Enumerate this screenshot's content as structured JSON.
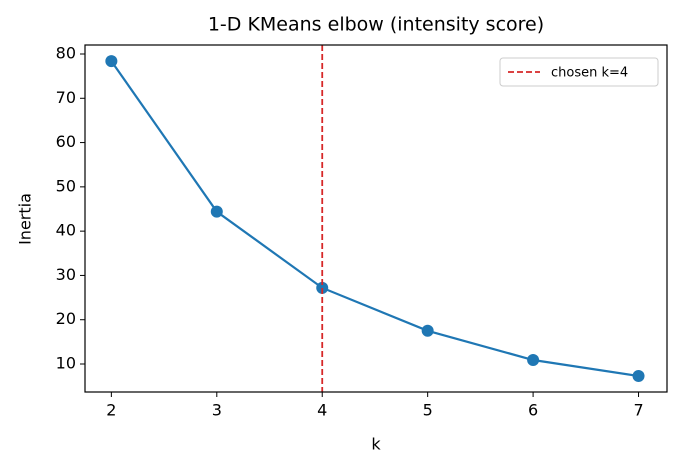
{
  "chart_data": {
    "type": "line",
    "title": "1-D KMeans elbow (intensity score)",
    "x_label": "k",
    "y_label": "Inertia",
    "x": [
      2,
      3,
      4,
      5,
      6,
      7
    ],
    "series": [
      {
        "name": null,
        "color": "#1f77b4",
        "values": [
          78.4,
          44.4,
          27.2,
          17.5,
          10.9,
          7.3
        ]
      }
    ],
    "vline": {
      "x": 4,
      "label": "chosen k=4",
      "color": "#d62728"
    },
    "legend": "upper right",
    "xlim": [
      1.75,
      7.27
    ],
    "xticks": [
      2,
      3,
      4,
      5,
      6,
      7
    ],
    "ylim": [
      3.68,
      82.03
    ],
    "yticks": [
      10,
      20,
      30,
      40,
      50,
      60,
      70,
      80
    ],
    "grid": false
  }
}
